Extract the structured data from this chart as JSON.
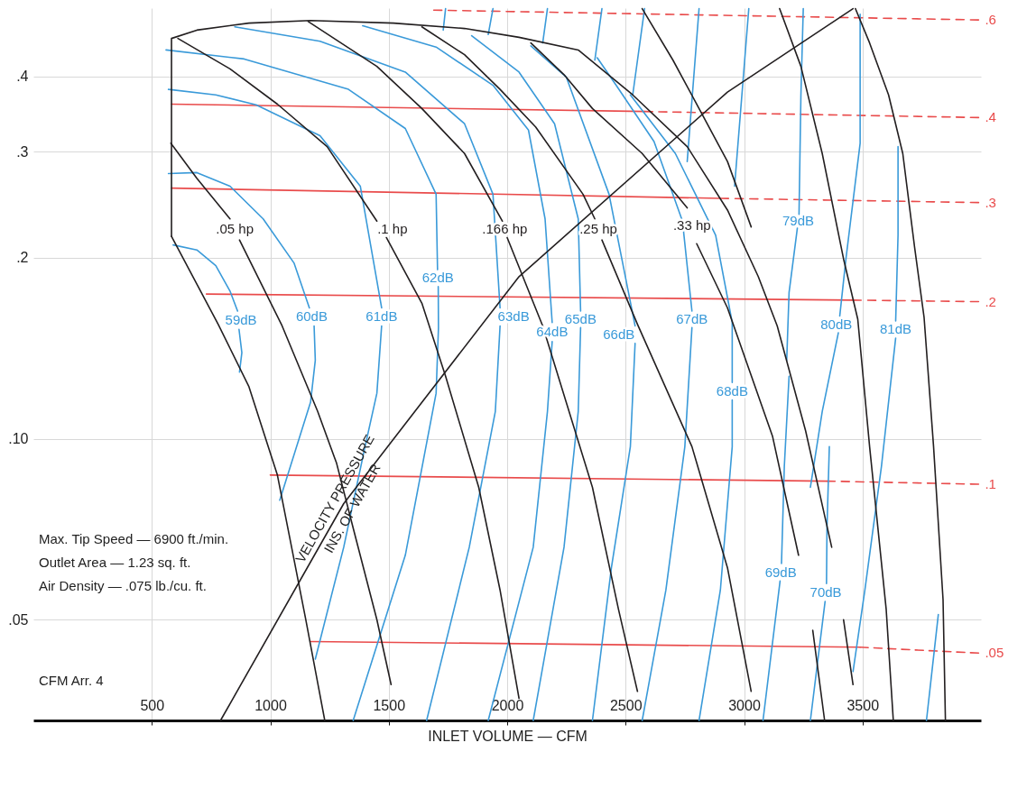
{
  "chart_data": {
    "type": "line",
    "xlabel": "INLET VOLUME — CFM",
    "xlim": [
      0,
      4000
    ],
    "xticks": [
      500,
      1000,
      1500,
      2000,
      2500,
      3000,
      3500
    ],
    "ylim": [
      0.034,
      0.52
    ],
    "yticks": [
      {
        "value": 0.05,
        "label": ".05"
      },
      {
        "value": 0.1,
        "label": ".10"
      },
      {
        "value": 0.2,
        "label": ".2"
      },
      {
        "value": 0.3,
        "label": ".3"
      },
      {
        "value": 0.4,
        "label": ".4"
      }
    ],
    "log": true,
    "grid": true,
    "annotations": [
      "Max. Tip Speed — 6900 ft./min.",
      "Outlet Area — 1.23 sq. ft.",
      "Air Density — .075 lb./cu. ft.",
      {
        "text": "VELOCITY PRESSURE",
        "x": 1310,
        "y": 0.078
      },
      {
        "text": "INS. OF WATER",
        "x": 1310,
        "y": 0.078
      },
      "CFM Arr. 4"
    ],
    "series": [
      {
        "name": ".6",
        "color": "#e94b4b",
        "line_style": "dashed",
        "x": [
          1690,
          3990
        ],
        "values": [
          0.516,
          0.497
        ]
      },
      {
        "color": "#e94b4b",
        "x": [
          583,
          2580
        ],
        "values": [
          0.36,
          0.35
        ]
      },
      {
        "name": ".4",
        "color": "#e94b4b",
        "line_style": "dashed",
        "x": [
          2580,
          3990
        ],
        "values": [
          0.35,
          0.342
        ]
      },
      {
        "color": "#e94b4b",
        "x": [
          583,
          2900
        ],
        "values": [
          0.261,
          0.251
        ]
      },
      {
        "name": ".3",
        "color": "#e94b4b",
        "line_style": "dashed",
        "x": [
          2900,
          3990
        ],
        "values": [
          0.251,
          0.247
        ]
      },
      {
        "color": "#e94b4b",
        "x": [
          730,
          3460
        ],
        "values": [
          0.174,
          0.17
        ]
      },
      {
        "name": ".2",
        "color": "#e94b4b",
        "line_style": "dashed",
        "x": [
          3460,
          3990
        ],
        "values": [
          0.17,
          0.169
        ]
      },
      {
        "color": "#e94b4b",
        "x": [
          1000,
          3350
        ],
        "values": [
          0.087,
          0.085
        ]
      },
      {
        "name": ".1",
        "color": "#e94b4b",
        "line_style": "dashed",
        "x": [
          3350,
          3990
        ],
        "values": [
          0.085,
          0.084
        ]
      },
      {
        "color": "#e94b4b",
        "x": [
          1170,
          3490
        ],
        "values": [
          0.046,
          0.045
        ]
      },
      {
        "name": ".05",
        "color": "#e94b4b",
        "line_style": "dashed",
        "x": [
          3490,
          3990
        ],
        "values": [
          0.045,
          0.044
        ]
      },
      {
        "name": "59dB",
        "color": "#3a9ad9",
        "x": [
          590,
          690,
          770,
          830,
          862,
          null,
          868,
          880,
          870
        ],
        "values": [
          0.21,
          0.206,
          0.194,
          0.176,
          0.163,
          null,
          0.152,
          0.139,
          0.129
        ]
      },
      {
        "name": "60dB",
        "color": "#3a9ad9",
        "x": [
          570,
          690,
          830,
          970,
          1100,
          1165,
          null,
          1185,
          1190,
          1170,
          1040
        ],
        "values": [
          0.276,
          0.277,
          0.263,
          0.232,
          0.196,
          0.165,
          null,
          0.154,
          0.135,
          0.115,
          0.079
        ]
      },
      {
        "name": "61dB",
        "color": "#3a9ad9",
        "x": [
          570,
          770,
          940,
          1210,
          1380,
          1470,
          null,
          1470,
          1450,
          1400,
          1310,
          1190
        ],
        "values": [
          0.381,
          0.373,
          0.359,
          0.319,
          0.263,
          0.165,
          null,
          0.154,
          0.119,
          0.097,
          0.066,
          0.043
        ]
      },
      {
        "name": "62dB",
        "color": "#3a9ad9",
        "x": [
          560,
          890,
          1330,
          1570,
          1700,
          1706,
          null,
          1709,
          1710,
          1700,
          1570,
          1350
        ],
        "values": [
          0.443,
          0.428,
          0.381,
          0.328,
          0.255,
          0.191,
          null,
          0.179,
          0.153,
          0.119,
          0.064,
          0.034
        ]
      },
      {
        "name": "63dB",
        "color": "#3a9ad9",
        "x": [
          850,
          1210,
          1570,
          1820,
          1940,
          1970,
          null,
          1970,
          1950,
          1840,
          1660
        ],
        "values": [
          0.484,
          0.458,
          0.407,
          0.334,
          0.255,
          0.165,
          null,
          0.154,
          0.111,
          0.066,
          0.034
        ]
      },
      {
        "name": "64dB",
        "color": "#3a9ad9",
        "x": [
          1390,
          1700,
          1940,
          2090,
          2160,
          2190,
          null,
          2190,
          2170,
          2110,
          1920
        ],
        "values": [
          0.486,
          0.448,
          0.387,
          0.326,
          0.232,
          0.156,
          null,
          0.145,
          0.111,
          0.066,
          0.034
        ]
      },
      {
        "name": "65dB",
        "color": "#3a9ad9",
        "x": [
          1850,
          2050,
          2200,
          2300,
          2310,
          null,
          2310,
          2300,
          2240,
          2110
        ],
        "values": [
          0.468,
          0.407,
          0.334,
          0.232,
          0.163,
          null,
          0.153,
          0.111,
          0.066,
          0.034
        ]
      },
      {
        "name": "66dB",
        "color": "#3a9ad9",
        "x": [
          2100,
          2250,
          2430,
          2540,
          null,
          2540,
          2520,
          2440,
          2360
        ],
        "values": [
          0.45,
          0.399,
          0.255,
          0.154,
          null,
          0.144,
          0.097,
          0.061,
          0.034
        ]
      },
      {
        "name": "67dB",
        "color": "#3a9ad9",
        "x": [
          2380,
          2460,
          2620,
          2740,
          2780,
          null,
          2780,
          2750,
          2670,
          2570
        ],
        "values": [
          0.43,
          0.387,
          0.312,
          0.23,
          0.163,
          null,
          0.153,
          0.097,
          0.056,
          0.034
        ]
      },
      {
        "name": "68dB",
        "color": "#3a9ad9",
        "x": [
          2520,
          2710,
          2880,
          2950,
          2950,
          null,
          2950,
          2950,
          2900,
          2810
        ],
        "values": [
          0.373,
          0.298,
          0.218,
          0.156,
          0.124,
          null,
          0.116,
          0.097,
          0.056,
          0.034
        ]
      },
      {
        "name": "69dB",
        "color": "#3a9ad9",
        "x": [
          3190,
          3170,
          3158,
          null,
          3152,
          3080
        ],
        "values": [
          0.127,
          0.09,
          0.062,
          null,
          0.058,
          0.034
        ]
      },
      {
        "name": "70dB",
        "color": "#3a9ad9",
        "x": [
          3360,
          3350,
          3348,
          null,
          3342,
          3280
        ],
        "values": [
          0.097,
          0.071,
          0.0574,
          null,
          0.0536,
          0.034
        ]
      },
      {
        "name": "79dB",
        "color": "#3a9ad9",
        "x": [
          3250,
          3240,
          3232,
          null,
          3225,
          3190,
          3180
        ],
        "values": [
          0.519,
          0.373,
          0.236,
          null,
          0.224,
          0.175,
          0.135
        ]
      },
      {
        "name": "80dB",
        "color": "#3a9ad9",
        "x": [
          3490,
          3490,
          3430,
          3404,
          null,
          3398,
          3330,
          3280
        ],
        "values": [
          0.508,
          0.31,
          0.199,
          0.16,
          null,
          0.15,
          0.111,
          0.083
        ]
      },
      {
        "name": "81dB",
        "color": "#3a9ad9",
        "x": [
          3650,
          3650,
          3640,
          null,
          3640,
          3580,
          3510,
          3460
        ],
        "values": [
          0.306,
          0.218,
          0.157,
          null,
          0.147,
          0.09,
          0.056,
          0.041
        ]
      },
      {
        "color": "#3a9ad9",
        "x": [
          3820,
          3770
        ],
        "values": [
          0.051,
          0.034
        ]
      },
      {
        "color": "#3a9ad9",
        "x": [
          1740,
          1730
        ],
        "values": [
          0.519,
          0.478
        ]
      },
      {
        "color": "#3a9ad9",
        "x": [
          1940,
          1920
        ],
        "values": [
          0.519,
          0.47
        ]
      },
      {
        "color": "#3a9ad9",
        "x": [
          2170,
          2150
        ],
        "values": [
          0.519,
          0.455
        ]
      },
      {
        "color": "#3a9ad9",
        "x": [
          2400,
          2370
        ],
        "values": [
          0.519,
          0.426
        ]
      },
      {
        "color": "#3a9ad9",
        "x": [
          2580,
          2530
        ],
        "values": [
          0.519,
          0.373
        ]
      },
      {
        "color": "#3a9ad9",
        "x": [
          2810,
          2760
        ],
        "values": [
          0.519,
          0.289
        ]
      },
      {
        "color": "#3a9ad9",
        "x": [
          3020,
          2960
        ],
        "values": [
          0.519,
          0.263
        ]
      },
      {
        "color": "#231f20",
        "x": [
          583,
          583,
          690,
          910,
          1170,
          1520,
          1820,
          2050,
          2300,
          2530,
          2760,
          2930,
          3060,
          3140,
          3260,
          3370,
          null,
          3420,
          3460
        ],
        "values": [
          0.217,
          0.463,
          0.478,
          0.491,
          0.496,
          0.491,
          0.481,
          0.465,
          0.443,
          0.373,
          0.306,
          0.24,
          0.186,
          0.154,
          0.103,
          0.066,
          null,
          0.05,
          0.039
        ]
      },
      {
        "color": "#231f20",
        "x": [
          3470,
          3530,
          3610,
          3670,
          3720,
          3760,
          3800,
          3840,
          3850
        ],
        "values": [
          0.519,
          0.455,
          0.373,
          0.298,
          0.208,
          0.159,
          0.097,
          0.054,
          0.034
        ]
      },
      {
        "color": "#231f20",
        "x": [
          583,
          780,
          910,
          1030,
          1090,
          1150,
          1230
        ],
        "values": [
          0.217,
          0.155,
          0.122,
          0.087,
          0.066,
          0.05,
          0.034
        ]
      },
      {
        "name": ".05 hp",
        "color": "#231f20",
        "x": [
          580,
          690,
          830,
          null,
          870,
          1050,
          1200,
          1280,
          1350,
          1450,
          1510
        ],
        "values": [
          0.31,
          0.271,
          0.232,
          null,
          0.214,
          0.154,
          0.111,
          0.091,
          0.071,
          0.05,
          0.039
        ]
      },
      {
        "name": ".1 hp",
        "color": "#231f20",
        "x": [
          610,
          830,
          1030,
          1240,
          1450,
          null,
          1490,
          1640,
          1740,
          1880,
          1970,
          2050
        ],
        "values": [
          0.463,
          0.412,
          0.36,
          0.306,
          0.23,
          null,
          0.216,
          0.168,
          0.127,
          0.083,
          0.056,
          0.037
        ]
      },
      {
        "name": ".166 hp",
        "color": "#231f20",
        "x": [
          1160,
          1450,
          1640,
          1820,
          1980,
          null,
          2000,
          2150,
          2360,
          2470,
          2550
        ],
        "values": [
          0.494,
          0.416,
          0.354,
          0.298,
          0.23,
          null,
          0.216,
          0.154,
          0.083,
          0.052,
          0.038
        ]
      },
      {
        "name": ".25 hp",
        "color": "#231f20",
        "x": [
          1640,
          1820,
          1970,
          2120,
          2320,
          2370,
          null,
          2400,
          2550,
          2780,
          2930,
          3030
        ],
        "values": [
          0.484,
          0.435,
          0.381,
          0.33,
          0.255,
          0.232,
          null,
          0.214,
          0.155,
          0.097,
          0.061,
          0.038
        ]
      },
      {
        "name": ".33 hp",
        "color": "#231f20",
        "x": [
          2100,
          2240,
          2360,
          2570,
          2760,
          null,
          2800,
          2930,
          3120,
          3230,
          null,
          3290,
          3340
        ],
        "values": [
          0.455,
          0.403,
          0.354,
          0.298,
          0.242,
          null,
          0.211,
          0.165,
          0.101,
          0.064,
          null,
          0.048,
          0.034
        ]
      },
      {
        "color": "#231f20",
        "x": [
          2570,
          2700,
          2810,
          2930,
          3030
        ],
        "values": [
          0.519,
          0.426,
          0.354,
          0.289,
          0.225
        ]
      },
      {
        "color": "#231f20",
        "x": [
          3150,
          3240,
          3330,
          3420,
          3480,
          3530,
          3600,
          3630
        ],
        "values": [
          0.519,
          0.416,
          0.298,
          0.199,
          0.158,
          0.097,
          0.052,
          0.034
        ]
      },
      {
        "color": "#231f20",
        "x": [
          790,
          1310,
          2050,
          2930,
          3460
        ],
        "values": [
          0.034,
          0.078,
          0.186,
          0.377,
          0.519
        ]
      }
    ]
  }
}
